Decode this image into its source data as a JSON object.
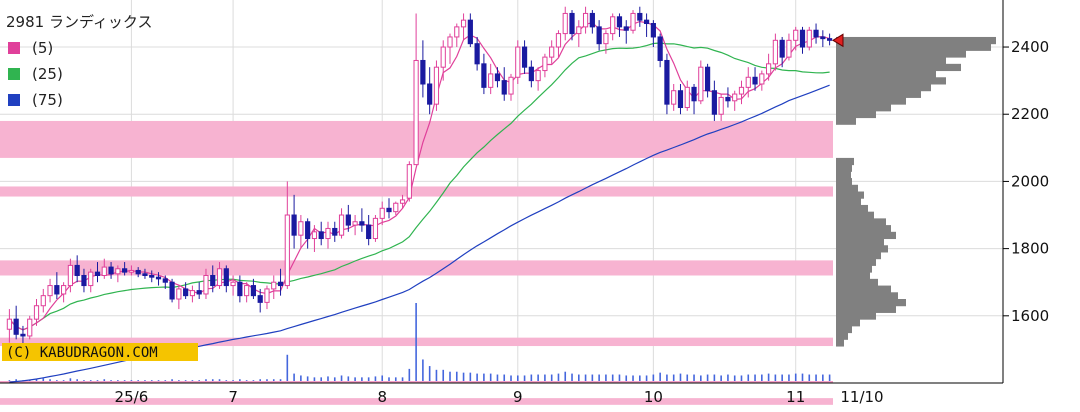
{
  "chart_data": {
    "type": "candlestick",
    "title": "2981 ランディックス",
    "watermark": "(C) KABUDRAGON.COM",
    "legend": {
      "placement": "top-left",
      "entries": [
        {
          "label": "(5)",
          "color": "#e0409a"
        },
        {
          "label": "(25)",
          "color": "#30b450"
        },
        {
          "label": "(75)",
          "color": "#2040c0"
        }
      ]
    },
    "x_tick_labels": [
      {
        "label": "25/6",
        "i": 18
      },
      {
        "label": "7",
        "i": 33
      },
      {
        "label": "8",
        "i": 55
      },
      {
        "label": "9",
        "i": 75
      },
      {
        "label": "10",
        "i": 95
      },
      {
        "label": "11",
        "i": 116
      }
    ],
    "date_label": "11/10",
    "ylim": [
      1400,
      2540
    ],
    "y_ticks": [
      1600,
      1800,
      2000,
      2200,
      2400
    ],
    "grid": true,
    "candles": [
      [
        1560,
        1620,
        1520,
        1590
      ],
      [
        1590,
        1630,
        1530,
        1545
      ],
      [
        1545,
        1570,
        1510,
        1540
      ],
      [
        1540,
        1600,
        1530,
        1590
      ],
      [
        1590,
        1650,
        1570,
        1630
      ],
      [
        1630,
        1680,
        1610,
        1660
      ],
      [
        1660,
        1710,
        1640,
        1690
      ],
      [
        1690,
        1730,
        1650,
        1665
      ],
      [
        1665,
        1700,
        1640,
        1690
      ],
      [
        1690,
        1770,
        1670,
        1750
      ],
      [
        1750,
        1780,
        1700,
        1720
      ],
      [
        1720,
        1740,
        1670,
        1690
      ],
      [
        1690,
        1740,
        1670,
        1730
      ],
      [
        1730,
        1760,
        1700,
        1720
      ],
      [
        1720,
        1770,
        1710,
        1745
      ],
      [
        1745,
        1760,
        1710,
        1725
      ],
      [
        1725,
        1750,
        1700,
        1740
      ],
      [
        1740,
        1760,
        1720,
        1730
      ],
      [
        1730,
        1750,
        1720,
        1735
      ],
      [
        1735,
        1745,
        1715,
        1725
      ],
      [
        1725,
        1740,
        1710,
        1720
      ],
      [
        1720,
        1735,
        1700,
        1715
      ],
      [
        1715,
        1730,
        1690,
        1710
      ],
      [
        1710,
        1720,
        1680,
        1700
      ],
      [
        1700,
        1710,
        1640,
        1650
      ],
      [
        1650,
        1690,
        1620,
        1680
      ],
      [
        1680,
        1700,
        1650,
        1660
      ],
      [
        1660,
        1690,
        1640,
        1675
      ],
      [
        1675,
        1700,
        1650,
        1665
      ],
      [
        1665,
        1740,
        1650,
        1720
      ],
      [
        1720,
        1750,
        1670,
        1690
      ],
      [
        1690,
        1760,
        1680,
        1740
      ],
      [
        1740,
        1750,
        1670,
        1690
      ],
      [
        1690,
        1720,
        1660,
        1700
      ],
      [
        1700,
        1720,
        1640,
        1660
      ],
      [
        1660,
        1700,
        1640,
        1690
      ],
      [
        1690,
        1710,
        1650,
        1660
      ],
      [
        1660,
        1680,
        1610,
        1640
      ],
      [
        1640,
        1690,
        1620,
        1680
      ],
      [
        1680,
        1720,
        1650,
        1700
      ],
      [
        1700,
        1740,
        1660,
        1690
      ],
      [
        1690,
        2000,
        1680,
        1900
      ],
      [
        1900,
        1960,
        1800,
        1840
      ],
      [
        1840,
        1900,
        1800,
        1880
      ],
      [
        1880,
        1890,
        1800,
        1830
      ],
      [
        1830,
        1870,
        1790,
        1850
      ],
      [
        1850,
        1880,
        1810,
        1830
      ],
      [
        1830,
        1880,
        1800,
        1860
      ],
      [
        1860,
        1880,
        1820,
        1840
      ],
      [
        1840,
        1920,
        1830,
        1900
      ],
      [
        1900,
        1930,
        1850,
        1870
      ],
      [
        1870,
        1900,
        1840,
        1880
      ],
      [
        1880,
        1920,
        1850,
        1870
      ],
      [
        1870,
        1900,
        1810,
        1830
      ],
      [
        1830,
        1900,
        1820,
        1890
      ],
      [
        1890,
        1940,
        1870,
        1920
      ],
      [
        1920,
        1950,
        1890,
        1910
      ],
      [
        1910,
        1940,
        1900,
        1935
      ],
      [
        1935,
        1960,
        1920,
        1945
      ],
      [
        1950,
        2060,
        1940,
        2050
      ],
      [
        2050,
        2500,
        2050,
        2360
      ],
      [
        2360,
        2420,
        2250,
        2290
      ],
      [
        2290,
        2340,
        2200,
        2230
      ],
      [
        2230,
        2360,
        2210,
        2340
      ],
      [
        2340,
        2420,
        2300,
        2400
      ],
      [
        2400,
        2440,
        2350,
        2430
      ],
      [
        2430,
        2470,
        2400,
        2460
      ],
      [
        2460,
        2500,
        2420,
        2480
      ],
      [
        2480,
        2500,
        2400,
        2410
      ],
      [
        2410,
        2430,
        2330,
        2350
      ],
      [
        2350,
        2380,
        2260,
        2280
      ],
      [
        2280,
        2350,
        2260,
        2320
      ],
      [
        2320,
        2340,
        2280,
        2300
      ],
      [
        2300,
        2340,
        2240,
        2260
      ],
      [
        2260,
        2320,
        2240,
        2310
      ],
      [
        2310,
        2420,
        2290,
        2400
      ],
      [
        2400,
        2420,
        2320,
        2340
      ],
      [
        2340,
        2360,
        2280,
        2300
      ],
      [
        2300,
        2340,
        2270,
        2330
      ],
      [
        2330,
        2380,
        2310,
        2370
      ],
      [
        2370,
        2420,
        2350,
        2400
      ],
      [
        2400,
        2450,
        2370,
        2440
      ],
      [
        2440,
        2520,
        2420,
        2500
      ],
      [
        2500,
        2510,
        2420,
        2440
      ],
      [
        2440,
        2480,
        2400,
        2460
      ],
      [
        2460,
        2520,
        2440,
        2500
      ],
      [
        2500,
        2510,
        2440,
        2460
      ],
      [
        2460,
        2480,
        2390,
        2410
      ],
      [
        2410,
        2450,
        2380,
        2440
      ],
      [
        2440,
        2500,
        2420,
        2490
      ],
      [
        2490,
        2500,
        2430,
        2460
      ],
      [
        2460,
        2480,
        2410,
        2450
      ],
      [
        2450,
        2510,
        2440,
        2500
      ],
      [
        2500,
        2520,
        2460,
        2480
      ],
      [
        2480,
        2500,
        2430,
        2470
      ],
      [
        2470,
        2480,
        2400,
        2430
      ],
      [
        2430,
        2440,
        2340,
        2360
      ],
      [
        2360,
        2380,
        2200,
        2230
      ],
      [
        2230,
        2290,
        2210,
        2270
      ],
      [
        2270,
        2290,
        2200,
        2220
      ],
      [
        2220,
        2300,
        2210,
        2280
      ],
      [
        2280,
        2290,
        2200,
        2240
      ],
      [
        2240,
        2360,
        2230,
        2340
      ],
      [
        2340,
        2350,
        2250,
        2270
      ],
      [
        2270,
        2300,
        2180,
        2200
      ],
      [
        2200,
        2260,
        2180,
        2250
      ],
      [
        2250,
        2280,
        2220,
        2240
      ],
      [
        2240,
        2270,
        2210,
        2260
      ],
      [
        2260,
        2300,
        2230,
        2280
      ],
      [
        2280,
        2340,
        2250,
        2310
      ],
      [
        2310,
        2340,
        2270,
        2290
      ],
      [
        2290,
        2330,
        2270,
        2320
      ],
      [
        2320,
        2380,
        2300,
        2350
      ],
      [
        2350,
        2440,
        2330,
        2420
      ],
      [
        2420,
        2430,
        2340,
        2370
      ],
      [
        2370,
        2440,
        2360,
        2420
      ],
      [
        2420,
        2460,
        2390,
        2450
      ],
      [
        2450,
        2460,
        2380,
        2400
      ],
      [
        2400,
        2460,
        2390,
        2450
      ],
      [
        2450,
        2470,
        2410,
        2430
      ],
      [
        2430,
        2450,
        2400,
        2425
      ],
      [
        2425,
        2440,
        2405,
        2420
      ]
    ],
    "volume": [
      3,
      4,
      3,
      3,
      4,
      5,
      4,
      3,
      3,
      5,
      4,
      3,
      3,
      3,
      4,
      3,
      3,
      3,
      3,
      3,
      3,
      3,
      3,
      3,
      4,
      3,
      3,
      3,
      3,
      4,
      4,
      4,
      3,
      3,
      4,
      3,
      3,
      4,
      4,
      4,
      4,
      30,
      10,
      8,
      7,
      6,
      6,
      7,
      6,
      8,
      7,
      6,
      6,
      6,
      7,
      8,
      6,
      6,
      6,
      15,
      85,
      25,
      18,
      14,
      14,
      12,
      12,
      11,
      11,
      10,
      10,
      10,
      9,
      9,
      8,
      8,
      8,
      9,
      9,
      9,
      9,
      10,
      12,
      10,
      9,
      9,
      9,
      9,
      9,
      9,
      9,
      8,
      8,
      8,
      8,
      9,
      11,
      9,
      9,
      10,
      9,
      9,
      8,
      9,
      9,
      8,
      9,
      8,
      8,
      9,
      9,
      9,
      10,
      9,
      9,
      9,
      10,
      10,
      9,
      9,
      9,
      9
    ],
    "resistance_bands": [
      [
        2070,
        2180
      ],
      [
        1955,
        1985
      ],
      [
        1720,
        1765
      ],
      [
        1510,
        1535
      ],
      [
        1335,
        1355
      ]
    ],
    "volume_profile": [
      [
        2420,
        160
      ],
      [
        2400,
        155
      ],
      [
        2380,
        130
      ],
      [
        2360,
        110
      ],
      [
        2340,
        125
      ],
      [
        2320,
        100
      ],
      [
        2300,
        110
      ],
      [
        2280,
        95
      ],
      [
        2260,
        85
      ],
      [
        2240,
        70
      ],
      [
        2220,
        55
      ],
      [
        2200,
        40
      ],
      [
        2180,
        20
      ],
      [
        2060,
        18
      ],
      [
        2040,
        16
      ],
      [
        2020,
        15
      ],
      [
        2000,
        16
      ],
      [
        1980,
        22
      ],
      [
        1960,
        28
      ],
      [
        1940,
        25
      ],
      [
        1920,
        32
      ],
      [
        1900,
        38
      ],
      [
        1880,
        50
      ],
      [
        1860,
        55
      ],
      [
        1840,
        60
      ],
      [
        1820,
        48
      ],
      [
        1800,
        52
      ],
      [
        1780,
        45
      ],
      [
        1760,
        40
      ],
      [
        1740,
        36
      ],
      [
        1720,
        34
      ],
      [
        1700,
        42
      ],
      [
        1680,
        55
      ],
      [
        1660,
        62
      ],
      [
        1640,
        70
      ],
      [
        1620,
        60
      ],
      [
        1600,
        40
      ],
      [
        1580,
        24
      ],
      [
        1560,
        16
      ],
      [
        1540,
        12
      ],
      [
        1520,
        8
      ]
    ],
    "current_price_marker": 2420
  }
}
